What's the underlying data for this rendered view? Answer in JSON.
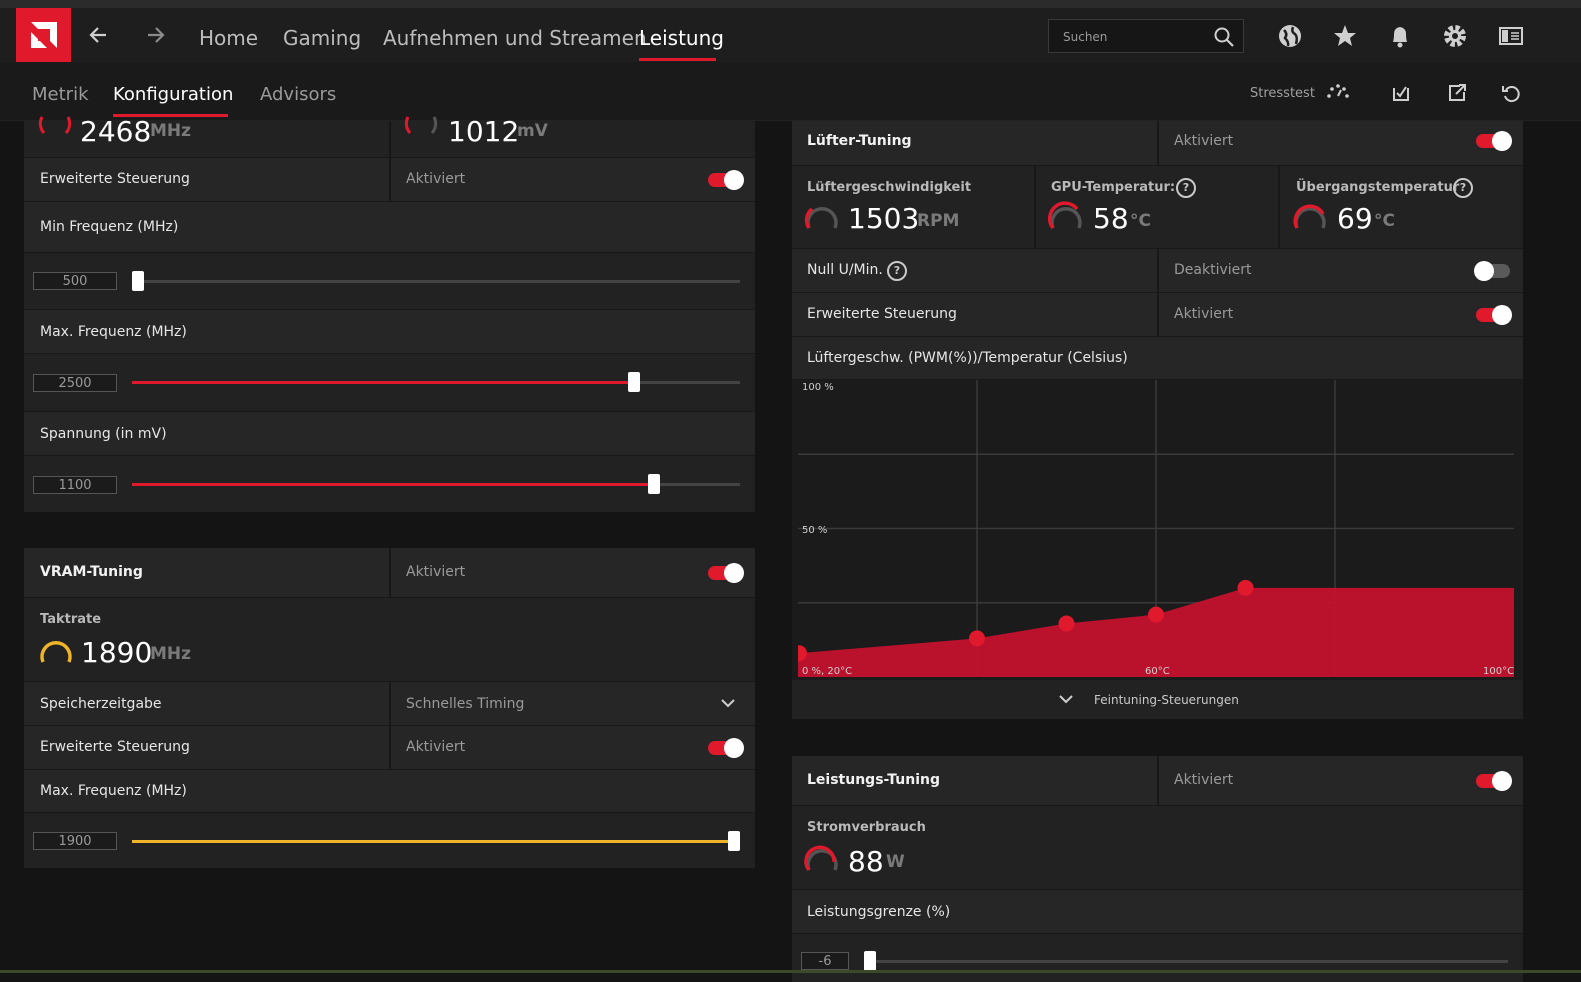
{
  "nav": {
    "items": [
      "Home",
      "Gaming",
      "Aufnehmen und Streamen",
      "Leistung"
    ],
    "active": "Leistung",
    "search_placeholder": "Suchen"
  },
  "subnav": {
    "tabs": [
      "Metrik",
      "Konfiguration",
      "Advisors"
    ],
    "active": "Konfiguration",
    "stress_label": "Stresstest"
  },
  "gpu": {
    "clock_value": "2468",
    "clock_unit": "MHz",
    "voltage_value": "1012",
    "voltage_unit": "mV",
    "advanced_label": "Erweiterte Steuerung",
    "advanced_status": "Aktiviert",
    "min_freq_label": "Min Frequenz (MHz)",
    "min_freq_value": "500",
    "min_freq_pct": 0.01,
    "max_freq_label": "Max. Frequenz (MHz)",
    "max_freq_value": "2500",
    "max_freq_pct": 0.83,
    "voltage_label": "Spannung (in mV)",
    "voltage_setting": "1100",
    "voltage_pct": 0.86
  },
  "vram": {
    "title": "VRAM-Tuning",
    "status": "Aktiviert",
    "clock_label": "Taktrate",
    "clock_value": "1890",
    "clock_unit": "MHz",
    "timing_label": "Speicherzeitgabe",
    "timing_value": "Schnelles Timing",
    "advanced_label": "Erweiterte Steuerung",
    "advanced_status": "Aktiviert",
    "max_freq_label": "Max. Frequenz (MHz)",
    "max_freq_value": "1900",
    "max_freq_pct": 1.0,
    "accent": "#f0b429"
  },
  "fan": {
    "title": "Lüfter-Tuning",
    "status": "Aktiviert",
    "speed_label": "Lüftergeschwindigkeit",
    "speed_value": "1503",
    "speed_unit": "RPM",
    "gpu_temp_label": "GPU-Temperatur:",
    "gpu_temp_value": "58",
    "gpu_temp_unit": "°C",
    "junction_label": "Übergangstemperatur",
    "junction_value": "69",
    "junction_unit": "°C",
    "zero_rpm_label": "Null U/Min.",
    "zero_rpm_status": "Deaktiviert",
    "advanced_label": "Erweiterte Steuerung",
    "advanced_status": "Aktiviert",
    "curve_label": "Lüftergeschw. (PWM(%))/Temperatur (Celsius)",
    "fine_label": "Feintuning-Steuerungen"
  },
  "chart_data": {
    "type": "area",
    "x": [
      20,
      40,
      50,
      60,
      70,
      100
    ],
    "y": [
      8,
      13,
      18,
      21,
      30,
      30
    ],
    "xlim": [
      20,
      100
    ],
    "ylim": [
      0,
      100
    ],
    "tick_labels": {
      "y_top": "100 %",
      "y_mid": "50 %",
      "origin": "0 %, 20°C",
      "x_mid": "60°C",
      "x_max": "100°C"
    },
    "color": "#c8102e",
    "point_color": "#e0192d"
  },
  "power": {
    "title": "Leistungs-Tuning",
    "status": "Aktiviert",
    "consumption_label": "Stromverbrauch",
    "consumption_value": "88",
    "consumption_unit": "W",
    "limit_label": "Leistungsgrenze (%)",
    "limit_value": "-6",
    "limit_pct": 0.0
  },
  "accent": "#e0192d"
}
